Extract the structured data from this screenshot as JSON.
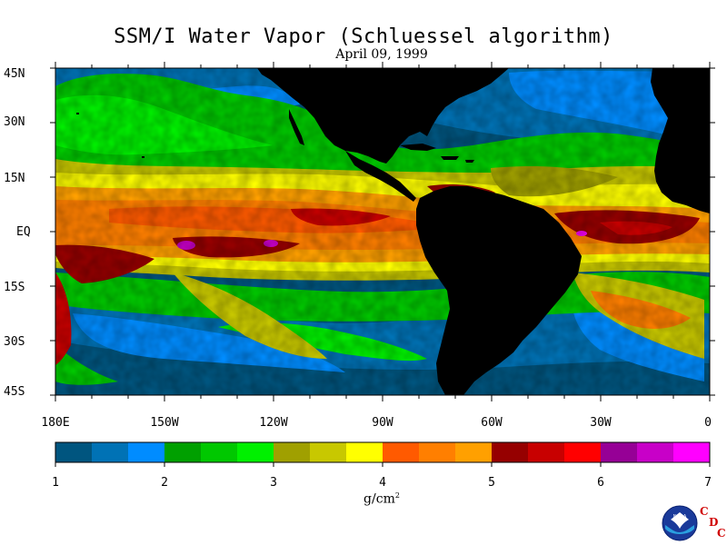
{
  "title": "SSM/I Water Vapor (Schluessel algorithm)",
  "date": "April 09, 1999",
  "map": {
    "lat_labels": [
      "45N",
      "30N",
      "15N",
      "EQ",
      "15S",
      "30S",
      "45S"
    ],
    "lat_values": [
      45,
      30,
      15,
      0,
      -15,
      -30,
      -45
    ],
    "lon_labels": [
      "180E",
      "150W",
      "120W",
      "90W",
      "60W",
      "30W",
      "0"
    ],
    "lon_values": [
      -180,
      -150,
      -120,
      -90,
      -60,
      -30,
      0
    ],
    "lat_range": [
      -45,
      45
    ],
    "lon_range": [
      -180,
      0
    ]
  },
  "colorbar": {
    "colors": [
      "#00557f",
      "#0072b5",
      "#008cff",
      "#00a000",
      "#00c800",
      "#00f000",
      "#a0a000",
      "#c8c800",
      "#ffff00",
      "#ff5a00",
      "#ff7f00",
      "#ffa000",
      "#960000",
      "#c80000",
      "#ff0000",
      "#960096",
      "#c800c8",
      "#ff00ff"
    ],
    "ticks": [
      "1",
      "2",
      "3",
      "4",
      "5",
      "6",
      "7"
    ],
    "range": [
      1,
      7
    ],
    "units_base": "g/cm",
    "units_exp": "2"
  },
  "logo": {
    "icon": "noaa-logo-icon",
    "text": "NOAA",
    "cdc": [
      "C",
      "D",
      "C"
    ]
  }
}
